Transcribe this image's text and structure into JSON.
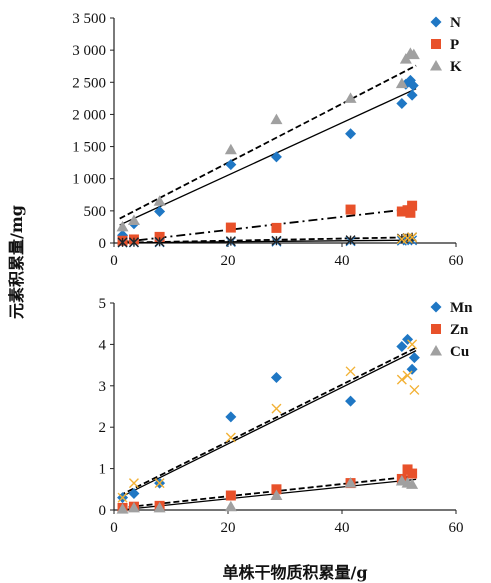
{
  "figure": {
    "ylabel": "元素积累量/mg",
    "xlabel": "单株干物质积累量/g"
  },
  "chart_data": [
    {
      "type": "scatter",
      "title": "",
      "xlim": [
        0,
        60
      ],
      "ylim": [
        0,
        3500
      ],
      "x_ticks": [
        {
          "value": 0,
          "label": "0"
        },
        {
          "value": 20,
          "label": "20"
        },
        {
          "value": 40,
          "label": "40"
        },
        {
          "value": 60,
          "label": "60"
        }
      ],
      "y_ticks": [
        {
          "value": 0,
          "label": "0"
        },
        {
          "value": 500,
          "label": "500"
        },
        {
          "value": 1000,
          "label": "1 000"
        },
        {
          "value": 1500,
          "label": "1 500"
        },
        {
          "value": 2000,
          "label": "2 000"
        },
        {
          "value": 2500,
          "label": "2 500"
        },
        {
          "value": 3000,
          "label": "3 000"
        },
        {
          "value": 3500,
          "label": "3 500"
        }
      ],
      "legend_position": "top-right",
      "series": [
        {
          "name": "N",
          "marker": "diamond",
          "color": "#1f77c4",
          "in_legend": true,
          "points": [
            [
              1.5,
              120
            ],
            [
              3.5,
              300
            ],
            [
              8,
              490
            ],
            [
              20.5,
              1220
            ],
            [
              28.5,
              1340
            ],
            [
              41.5,
              1700
            ],
            [
              50.5,
              2170
            ],
            [
              51.2,
              2470
            ],
            [
              52,
              2530
            ],
            [
              52.5,
              2450
            ],
            [
              52.3,
              2300
            ]
          ],
          "fit": {
            "style": "solid",
            "x": [
              1,
              53
            ],
            "y": [
              280,
              2400
            ]
          }
        },
        {
          "name": "P",
          "marker": "square",
          "color": "#e8512a",
          "in_legend": true,
          "points": [
            [
              1.5,
              35
            ],
            [
              3.5,
              55
            ],
            [
              8,
              95
            ],
            [
              20.5,
              240
            ],
            [
              28.5,
              235
            ],
            [
              41.5,
              520
            ],
            [
              50.5,
              490
            ],
            [
              51.5,
              510
            ],
            [
              52.3,
              580
            ],
            [
              52,
              470
            ]
          ],
          "fit": {
            "style": "dashdot",
            "x": [
              1,
              53
            ],
            "y": [
              10,
              540
            ]
          }
        },
        {
          "name": "K",
          "marker": "triangle",
          "color": "#a0a0a0",
          "in_legend": true,
          "points": [
            [
              1.5,
              250
            ],
            [
              3.5,
              350
            ],
            [
              8,
              650
            ],
            [
              20.5,
              1450
            ],
            [
              28.5,
              1920
            ],
            [
              41.5,
              2250
            ],
            [
              50.5,
              2480
            ],
            [
              51.2,
              2860
            ],
            [
              52,
              2950
            ],
            [
              52.6,
              2930
            ]
          ],
          "fit": {
            "style": "dashed",
            "x": [
              1,
              53
            ],
            "y": [
              380,
              2760
            ]
          }
        },
        {
          "name": "",
          "marker": "x",
          "color": "#1f77c4",
          "in_legend": false,
          "points": [
            [
              1.5,
              5
            ],
            [
              3.5,
              8
            ],
            [
              8,
              10
            ],
            [
              20.5,
              15
            ],
            [
              28.5,
              20
            ],
            [
              41.5,
              28
            ],
            [
              50.5,
              35
            ],
            [
              51.5,
              38
            ],
            [
              52.3,
              40
            ]
          ],
          "fit": {
            "style": "solid",
            "x": [
              1,
              53
            ],
            "y": [
              3,
              45
            ]
          }
        },
        {
          "name": "",
          "marker": "star",
          "color": "#222222",
          "in_legend": false,
          "points": [
            [
              1.5,
              10
            ],
            [
              3.5,
              12
            ],
            [
              8,
              18
            ],
            [
              20.5,
              30
            ],
            [
              28.5,
              35
            ],
            [
              41.5,
              45
            ],
            [
              50.5,
              70
            ],
            [
              51.5,
              80
            ],
            [
              52.3,
              90
            ]
          ],
          "fit": {
            "style": "dashed",
            "x": [
              1,
              53
            ],
            "y": [
              5,
              90
            ]
          }
        },
        {
          "name": "",
          "marker": "x",
          "color": "#f2b134",
          "in_legend": false,
          "points": [
            [
              50.5,
              60
            ],
            [
              51.5,
              75
            ],
            [
              52.3,
              90
            ]
          ],
          "fit": null
        }
      ]
    },
    {
      "type": "scatter",
      "title": "",
      "xlim": [
        0,
        60
      ],
      "ylim": [
        0,
        5
      ],
      "x_ticks": [
        {
          "value": 0,
          "label": "0"
        },
        {
          "value": 20,
          "label": "20"
        },
        {
          "value": 40,
          "label": "40"
        },
        {
          "value": 60,
          "label": "60"
        }
      ],
      "y_ticks": [
        {
          "value": 0,
          "label": "0"
        },
        {
          "value": 1,
          "label": "1"
        },
        {
          "value": 2,
          "label": "2"
        },
        {
          "value": 3,
          "label": "3"
        },
        {
          "value": 4,
          "label": "4"
        },
        {
          "value": 5,
          "label": "5"
        }
      ],
      "legend_position": "top-right",
      "series": [
        {
          "name": "Mn",
          "marker": "diamond",
          "color": "#1f77c4",
          "in_legend": true,
          "points": [
            [
              1.5,
              0.3
            ],
            [
              3.5,
              0.4
            ],
            [
              8,
              0.65
            ],
            [
              20.5,
              2.25
            ],
            [
              28.5,
              3.2
            ],
            [
              41.5,
              2.63
            ],
            [
              50.5,
              3.95
            ],
            [
              51.5,
              4.12
            ],
            [
              52.3,
              3.4
            ],
            [
              52.7,
              3.68
            ]
          ],
          "fit": {
            "style": "dashed",
            "x": [
              1,
              53
            ],
            "y": [
              0.35,
              3.92
            ]
          }
        },
        {
          "name": "Zn",
          "marker": "square",
          "color": "#e8512a",
          "in_legend": true,
          "points": [
            [
              1.5,
              0.05
            ],
            [
              3.5,
              0.08
            ],
            [
              8,
              0.1
            ],
            [
              20.5,
              0.35
            ],
            [
              28.5,
              0.5
            ],
            [
              41.5,
              0.65
            ],
            [
              50.5,
              0.75
            ],
            [
              51.5,
              0.98
            ],
            [
              52.3,
              0.88
            ]
          ],
          "fit": {
            "style": "dashed",
            "x": [
              1,
              53
            ],
            "y": [
              0.05,
              0.82
            ]
          }
        },
        {
          "name": "Cu",
          "marker": "triangle",
          "color": "#a0a0a0",
          "in_legend": true,
          "points": [
            [
              1.5,
              0.02
            ],
            [
              3.5,
              0.05
            ],
            [
              8,
              0.05
            ],
            [
              20.5,
              0.08
            ],
            [
              28.5,
              0.35
            ],
            [
              41.5,
              0.65
            ],
            [
              50.5,
              0.7
            ],
            [
              51.5,
              0.65
            ],
            [
              52.3,
              0.62
            ]
          ],
          "fit": {
            "style": "solid",
            "x": [
              1,
              53
            ],
            "y": [
              0.0,
              0.74
            ]
          }
        },
        {
          "name": "",
          "marker": "x",
          "color": "#f2b134",
          "in_legend": false,
          "points": [
            [
              1.5,
              0.3
            ],
            [
              3.5,
              0.65
            ],
            [
              8,
              0.65
            ],
            [
              20.5,
              1.75
            ],
            [
              28.5,
              2.45
            ],
            [
              41.5,
              3.35
            ],
            [
              50.5,
              3.15
            ],
            [
              51.5,
              3.25
            ],
            [
              52.3,
              4.0
            ],
            [
              52.7,
              2.9
            ]
          ],
          "fit": {
            "style": "solid",
            "x": [
              1,
              53
            ],
            "y": [
              0.3,
              3.85
            ]
          }
        }
      ]
    }
  ]
}
